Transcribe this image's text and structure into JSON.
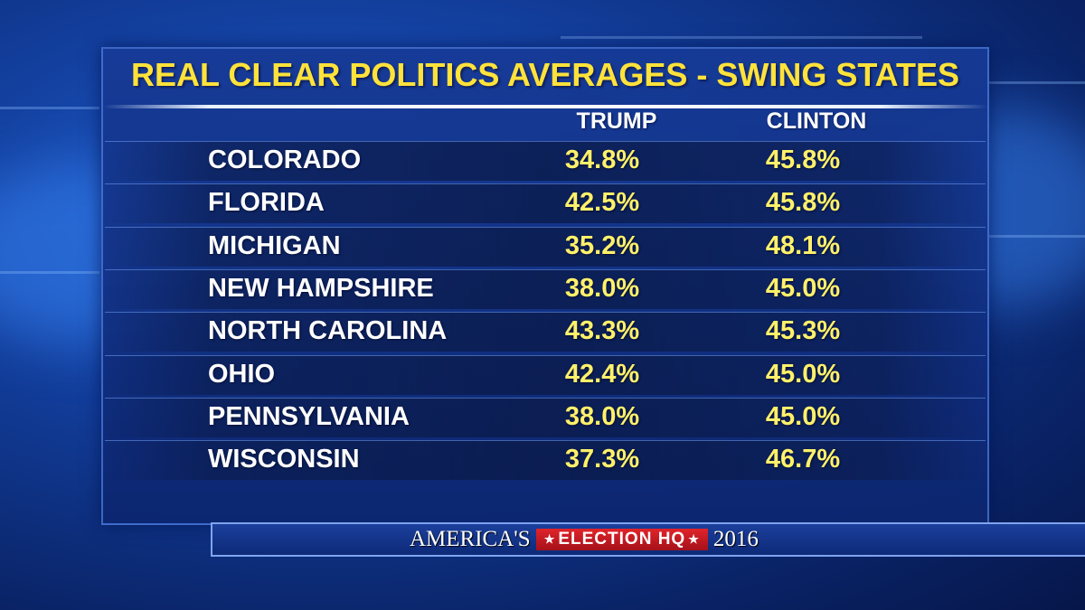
{
  "chart_data": {
    "type": "table",
    "title": "REAL CLEAR POLITICS AVERAGES - SWING STATES",
    "columns": [
      "TRUMP",
      "CLINTON"
    ],
    "rows": [
      {
        "state": "COLORADO",
        "trump": "34.8%",
        "clinton": "45.8%"
      },
      {
        "state": "FLORIDA",
        "trump": "42.5%",
        "clinton": "45.8%"
      },
      {
        "state": "MICHIGAN",
        "trump": "35.2%",
        "clinton": "48.1%"
      },
      {
        "state": "NEW HAMPSHIRE",
        "trump": "38.0%",
        "clinton": "45.0%"
      },
      {
        "state": "NORTH CAROLINA",
        "trump": "43.3%",
        "clinton": "45.3%"
      },
      {
        "state": "OHIO",
        "trump": "42.4%",
        "clinton": "45.0%"
      },
      {
        "state": "PENNSYLVANIA",
        "trump": "38.0%",
        "clinton": "45.0%"
      },
      {
        "state": "WISCONSIN",
        "trump": "37.3%",
        "clinton": "46.7%"
      }
    ]
  },
  "banner": {
    "left_text": "AMERICA'S",
    "star": "★",
    "center_text": "ELECTION HQ",
    "right_text": "2016"
  },
  "colors": {
    "title": "#ffe23a",
    "values": "#fff16a",
    "labels": "#ffffff",
    "banner_red": "#d3202a"
  }
}
